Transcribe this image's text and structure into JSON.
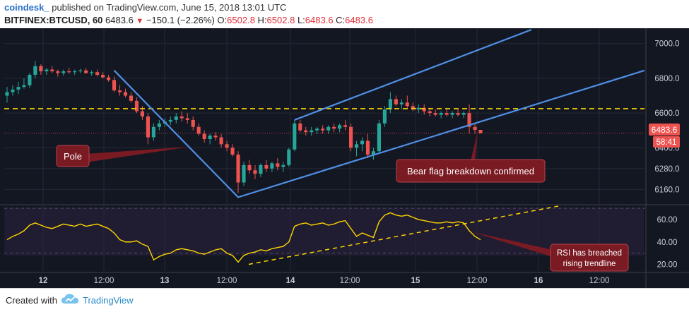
{
  "header": {
    "author": "coindesk_",
    "published": "published on TradingView.com, June 15, 2018 13:01 UTC",
    "symbol": "BITFINEX:BTCUSD, 60",
    "last": "6483.6",
    "change": "−150.1 (−2.26%)",
    "o_label": "O:",
    "o_value": "6502.8",
    "h_label": "H:",
    "h_value": "6502.8",
    "l_label": "L:",
    "l_value": "6483.6",
    "c_label": "C:",
    "c_value": "6483.6"
  },
  "price_tag": "6483.6",
  "countdown_tag": "58:41",
  "annotations": {
    "pole": "Pole",
    "breakdown": "Bear flag breakdown confirmed",
    "rsi_line1": "RSI has breached",
    "rsi_line2": "rising trendline"
  },
  "footer": {
    "created_with": "Created with",
    "brand": "TradingView"
  },
  "colors": {
    "background": "#131722",
    "up": "#26a69a",
    "down": "#ef5350",
    "trendline": "#4f8fe6",
    "resistance": "#ffd600",
    "rsi": "#ffd600",
    "callout": "#7a1a22"
  },
  "chart_data": [
    {
      "type": "candlestick",
      "title": "BITFINEX:BTCUSD, 60",
      "y_ticks": [
        6160,
        6280,
        6400,
        6600,
        6800,
        7000
      ],
      "x_ticks": [
        "12",
        "12:00",
        "13",
        "12:00",
        "14",
        "12:00",
        "15",
        "12:00",
        "16",
        "12:00"
      ],
      "ylim": [
        6080,
        7080
      ],
      "series": [
        {
          "name": "BTCUSD",
          "ohlc": [
            [
              6700,
              6750,
              6660,
              6720
            ],
            [
              6720,
              6760,
              6700,
              6735
            ],
            [
              6735,
              6780,
              6710,
              6750
            ],
            [
              6750,
              6800,
              6740,
              6760
            ],
            [
              6760,
              6830,
              6745,
              6820
            ],
            [
              6820,
              6900,
              6800,
              6870
            ],
            [
              6870,
              6880,
              6820,
              6840
            ],
            [
              6840,
              6860,
              6820,
              6850
            ],
            [
              6850,
              6870,
              6830,
              6840
            ],
            [
              6840,
              6850,
              6810,
              6830
            ],
            [
              6830,
              6850,
              6815,
              6840
            ],
            [
              6840,
              6860,
              6825,
              6835
            ],
            [
              6835,
              6850,
              6820,
              6840
            ],
            [
              6840,
              6855,
              6830,
              6845
            ],
            [
              6845,
              6860,
              6825,
              6830
            ],
            [
              6830,
              6845,
              6815,
              6835
            ],
            [
              6835,
              6850,
              6810,
              6820
            ],
            [
              6820,
              6835,
              6800,
              6805
            ],
            [
              6805,
              6820,
              6780,
              6790
            ],
            [
              6790,
              6810,
              6720,
              6730
            ],
            [
              6730,
              6760,
              6700,
              6720
            ],
            [
              6720,
              6740,
              6690,
              6700
            ],
            [
              6700,
              6720,
              6660,
              6670
            ],
            [
              6670,
              6690,
              6600,
              6610
            ],
            [
              6610,
              6640,
              6560,
              6580
            ],
            [
              6580,
              6600,
              6420,
              6460
            ],
            [
              6460,
              6540,
              6440,
              6520
            ],
            [
              6520,
              6560,
              6500,
              6540
            ],
            [
              6540,
              6570,
              6520,
              6550
            ],
            [
              6550,
              6580,
              6530,
              6560
            ],
            [
              6560,
              6600,
              6540,
              6580
            ],
            [
              6580,
              6610,
              6550,
              6570
            ],
            [
              6570,
              6600,
              6540,
              6560
            ],
            [
              6560,
              6580,
              6500,
              6520
            ],
            [
              6520,
              6540,
              6470,
              6480
            ],
            [
              6480,
              6500,
              6430,
              6450
            ],
            [
              6450,
              6480,
              6420,
              6470
            ],
            [
              6470,
              6490,
              6440,
              6460
            ],
            [
              6460,
              6480,
              6400,
              6420
            ],
            [
              6420,
              6440,
              6380,
              6400
            ],
            [
              6400,
              6420,
              6350,
              6360
            ],
            [
              6360,
              6380,
              6140,
              6200
            ],
            [
              6200,
              6320,
              6180,
              6300
            ],
            [
              6300,
              6330,
              6250,
              6270
            ],
            [
              6270,
              6300,
              6220,
              6250
            ],
            [
              6250,
              6310,
              6230,
              6300
            ],
            [
              6300,
              6330,
              6260,
              6280
            ],
            [
              6280,
              6320,
              6260,
              6310
            ],
            [
              6310,
              6340,
              6270,
              6290
            ],
            [
              6290,
              6320,
              6260,
              6300
            ],
            [
              6300,
              6400,
              6290,
              6390
            ],
            [
              6390,
              6560,
              6380,
              6540
            ],
            [
              6540,
              6560,
              6490,
              6500
            ],
            [
              6500,
              6520,
              6470,
              6490
            ],
            [
              6490,
              6520,
              6470,
              6500
            ],
            [
              6500,
              6520,
              6480,
              6510
            ],
            [
              6510,
              6530,
              6480,
              6500
            ],
            [
              6500,
              6530,
              6480,
              6520
            ],
            [
              6520,
              6540,
              6490,
              6510
            ],
            [
              6510,
              6540,
              6490,
              6530
            ],
            [
              6530,
              6560,
              6500,
              6520
            ],
            [
              6520,
              6540,
              6380,
              6400
            ],
            [
              6400,
              6440,
              6350,
              6420
            ],
            [
              6420,
              6460,
              6380,
              6440
            ],
            [
              6440,
              6480,
              6340,
              6360
            ],
            [
              6360,
              6400,
              6330,
              6380
            ],
            [
              6380,
              6560,
              6370,
              6540
            ],
            [
              6540,
              6640,
              6520,
              6620
            ],
            [
              6620,
              6720,
              6600,
              6680
            ],
            [
              6680,
              6700,
              6640,
              6650
            ],
            [
              6650,
              6680,
              6620,
              6660
            ],
            [
              6660,
              6700,
              6630,
              6640
            ],
            [
              6640,
              6660,
              6610,
              6620
            ],
            [
              6620,
              6650,
              6600,
              6630
            ],
            [
              6630,
              6650,
              6590,
              6610
            ],
            [
              6610,
              6630,
              6580,
              6600
            ],
            [
              6600,
              6620,
              6580,
              6590
            ],
            [
              6590,
              6610,
              6570,
              6600
            ],
            [
              6600,
              6620,
              6580,
              6590
            ],
            [
              6590,
              6610,
              6570,
              6600
            ],
            [
              6600,
              6620,
              6580,
              6590
            ],
            [
              6590,
              6610,
              6570,
              6600
            ],
            [
              6600,
              6650,
              6480,
              6520
            ],
            [
              6520,
              6540,
              6480,
              6502.8
            ],
            [
              6502.8,
              6502.8,
              6483.6,
              6483.6
            ]
          ]
        }
      ],
      "lines": [
        {
          "name": "resistance",
          "y": 6625,
          "style": "dashed"
        }
      ]
    },
    {
      "type": "line",
      "title": "RSI",
      "y_ticks": [
        20,
        40,
        60
      ],
      "ylim": [
        14,
        72
      ],
      "bands": [
        30,
        70
      ],
      "series": [
        {
          "values": [
            42,
            45,
            47,
            50,
            55,
            57,
            55,
            53,
            52,
            54,
            56,
            55,
            54,
            56,
            54,
            55,
            56,
            54,
            52,
            48,
            42,
            40,
            40,
            41,
            38,
            36,
            24,
            27,
            29,
            30,
            33,
            34,
            33,
            32,
            30,
            29,
            31,
            33,
            34,
            30,
            28,
            22,
            28,
            30,
            31,
            33,
            32,
            34,
            35,
            36,
            40,
            54,
            56,
            57,
            55,
            56,
            57,
            55,
            56,
            58,
            59,
            52,
            45,
            48,
            46,
            44,
            58,
            64,
            66,
            64,
            63,
            64,
            62,
            60,
            59,
            58,
            57,
            57,
            58,
            57,
            58,
            57,
            50,
            45,
            42
          ]
        }
      ]
    }
  ]
}
